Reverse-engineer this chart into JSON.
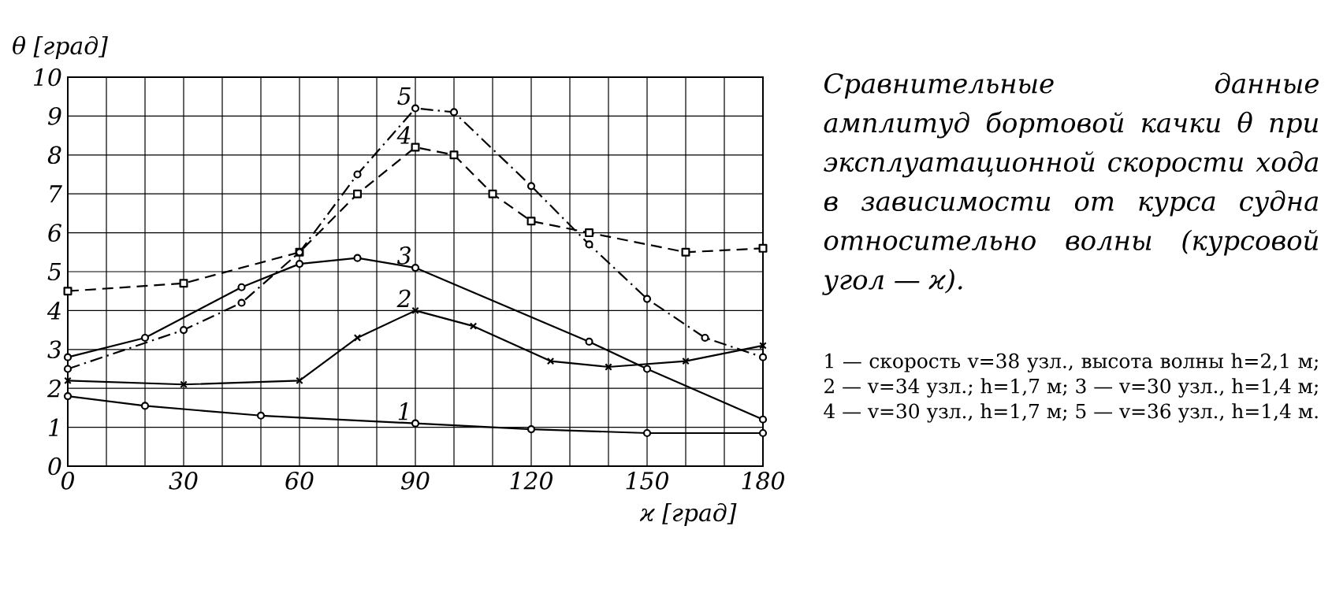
{
  "chart_data": {
    "type": "line",
    "title": "Сравнительные данные амплитуд бортовой качки θ при эксплуатационной скорости хода в зависимости от курса судна относительно волны (курсовой угол — ϰ).",
    "annotations": [
      "1 — скорость v=38 узл., высота волны h=2,1 м; 2 — v=34 узл.; h=1,7 м; 3 — v=30 узл., h=1,4 м; 4 — v=30 узл., h=1,7 м; 5 — v=36 узл., h=1,4 м."
    ],
    "xlabel": "ϰ [град]",
    "ylabel": "θ [град]",
    "xlim": [
      0,
      180
    ],
    "ylim": [
      0,
      10
    ],
    "xticks": [
      0,
      {
        "value": 10,
        "label": null
      },
      {
        "value": 20,
        "label": null
      },
      30,
      {
        "value": 40,
        "label": null
      },
      {
        "value": 50,
        "label": null
      },
      60,
      {
        "value": 70,
        "label": null
      },
      {
        "value": 80,
        "label": null
      },
      90,
      {
        "value": 100,
        "label": null
      },
      {
        "value": 110,
        "label": null
      },
      120,
      {
        "value": 130,
        "label": null
      },
      {
        "value": 140,
        "label": null
      },
      150,
      {
        "value": 160,
        "label": null
      },
      {
        "value": 170,
        "label": null
      },
      180
    ],
    "yticks": [
      0,
      1,
      2,
      3,
      4,
      5,
      6,
      7,
      8,
      9,
      10
    ],
    "grid": true,
    "series": [
      {
        "name": "1",
        "color": "#000000",
        "marker": "circle",
        "line_style": "solid",
        "x": [
          0,
          20,
          50,
          90,
          120,
          150,
          180
        ],
        "values": [
          1.8,
          1.55,
          1.3,
          1.1,
          0.95,
          0.85,
          0.85
        ]
      },
      {
        "name": "2",
        "color": "#000000",
        "marker": "cross",
        "line_style": "solid",
        "x": [
          0,
          30,
          60,
          75,
          90,
          105,
          125,
          140,
          160,
          180
        ],
        "values": [
          2.2,
          2.1,
          2.2,
          3.3,
          4.0,
          3.6,
          2.7,
          2.55,
          2.7,
          3.1
        ]
      },
      {
        "name": "3",
        "color": "#000000",
        "marker": "circle",
        "line_style": "solid",
        "x": [
          0,
          20,
          45,
          60,
          75,
          90,
          135,
          150,
          180
        ],
        "values": [
          2.8,
          3.3,
          4.6,
          5.2,
          5.35,
          5.1,
          3.2,
          2.5,
          1.2
        ]
      },
      {
        "name": "4",
        "color": "#000000",
        "marker": "square",
        "line_style": "dashed",
        "x": [
          0,
          30,
          60,
          75,
          90,
          100,
          110,
          120,
          135,
          160,
          180
        ],
        "values": [
          4.5,
          4.7,
          5.5,
          7.0,
          8.2,
          8.0,
          7.0,
          6.3,
          6.0,
          5.5,
          5.6
        ]
      },
      {
        "name": "5",
        "color": "#000000",
        "marker": "circle",
        "line_style": "dashdot",
        "x": [
          0,
          30,
          45,
          60,
          75,
          90,
          100,
          120,
          135,
          150,
          165,
          180
        ],
        "values": [
          2.5,
          3.5,
          4.2,
          5.5,
          7.5,
          9.2,
          9.1,
          7.2,
          5.7,
          4.3,
          3.3,
          2.8
        ]
      }
    ]
  }
}
